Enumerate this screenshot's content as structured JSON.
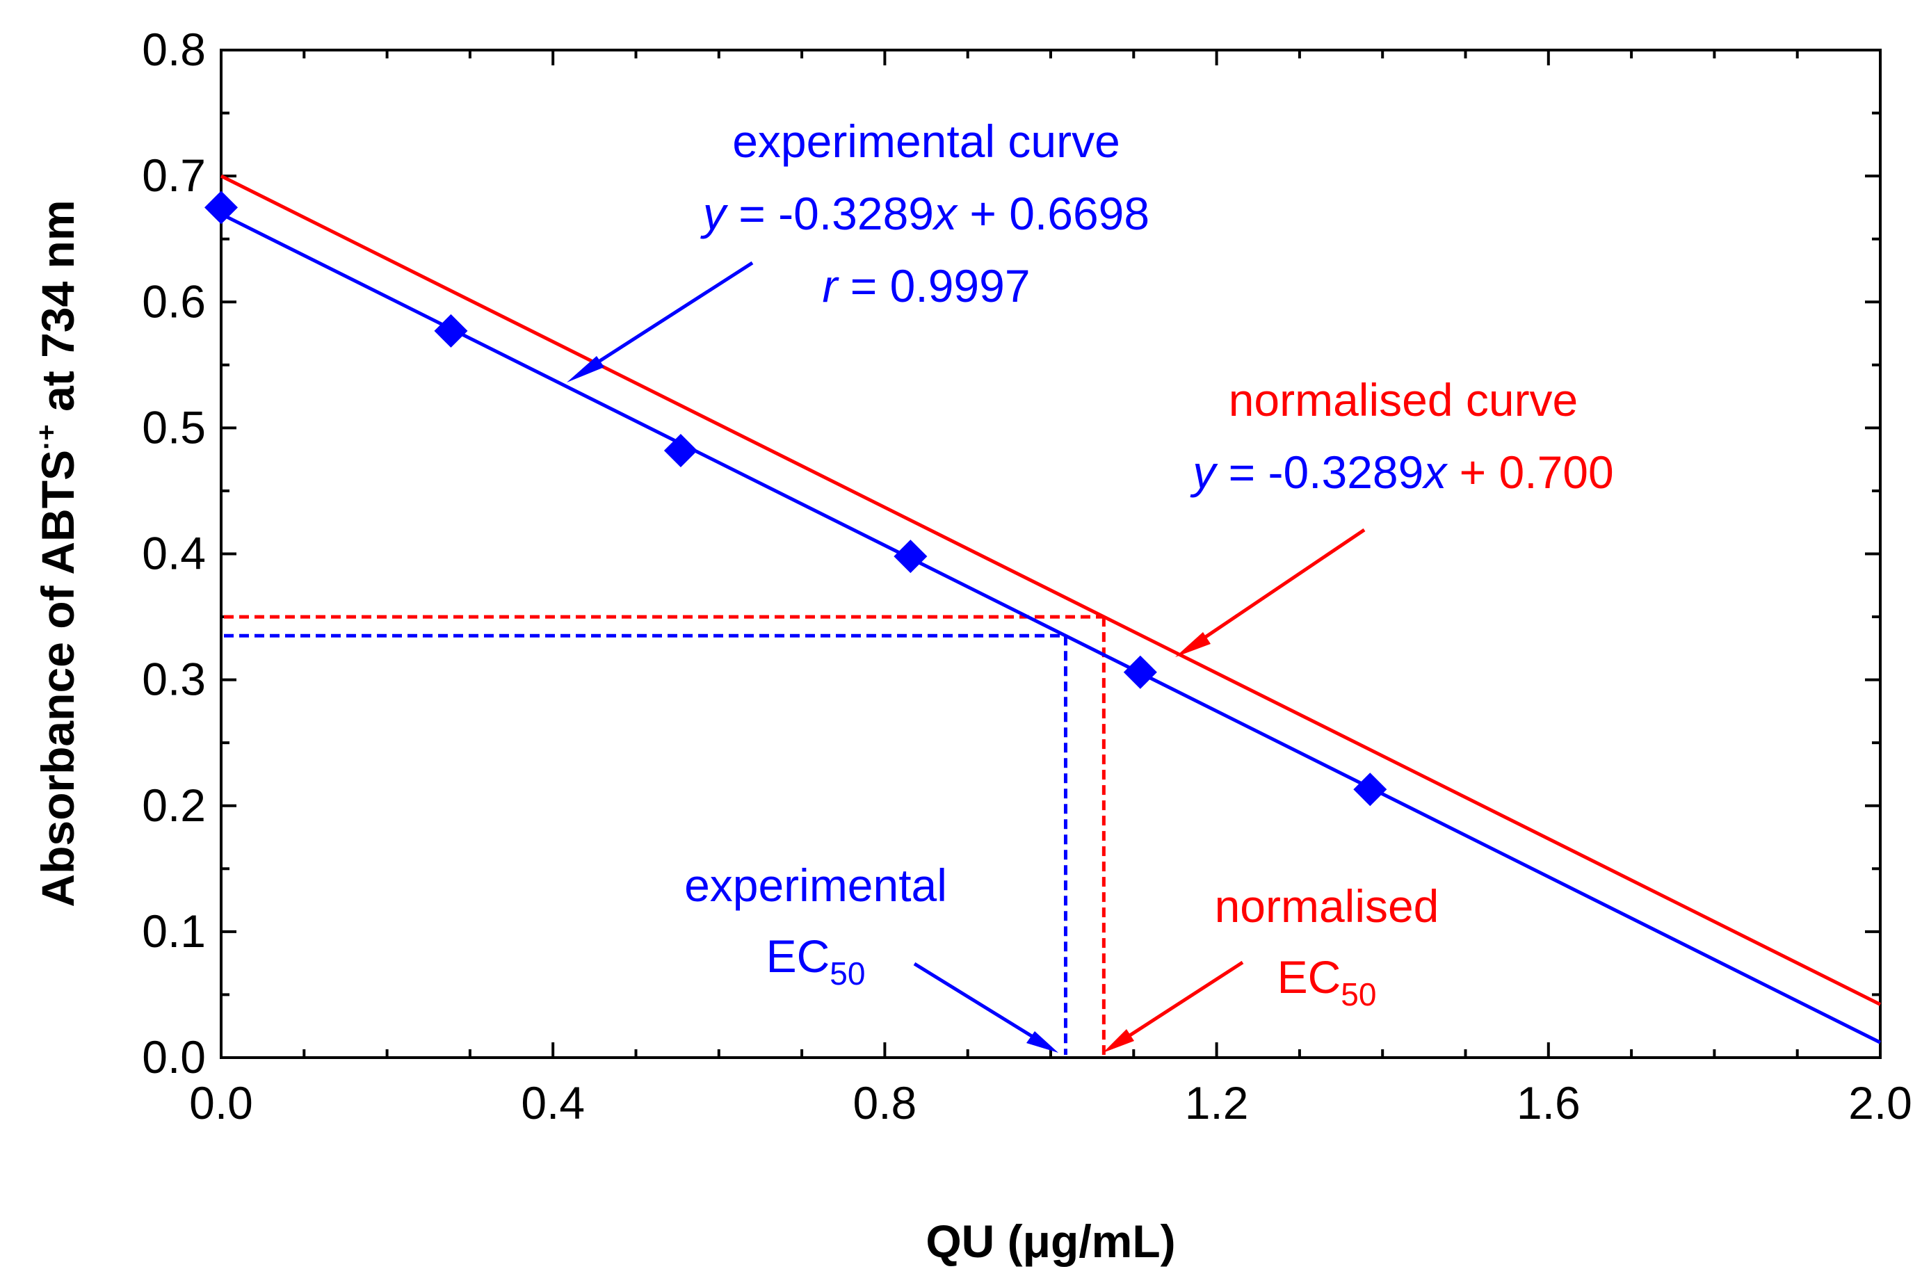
{
  "chart_data": {
    "type": "scatter",
    "title": "",
    "xlabel": "QU (μg/mL)",
    "ylabel_main": "Absorbance of ABTS",
    "ylabel_sup": "·+",
    "ylabel_tail": " at 734 nm",
    "xlim": [
      0.0,
      2.0
    ],
    "ylim": [
      0.0,
      0.8
    ],
    "xticks": [
      "0.0",
      "0.4",
      "0.8",
      "1.2",
      "1.6",
      "2.0"
    ],
    "yticks": [
      "0.0",
      "0.1",
      "0.2",
      "0.3",
      "0.4",
      "0.5",
      "0.6",
      "0.7",
      "0.8"
    ],
    "series": [
      {
        "name": "experimental data",
        "kind": "points",
        "marker": "diamond",
        "color": "#0000ff",
        "x": [
          0.0,
          0.277,
          0.554,
          0.831,
          1.108,
          1.385
        ],
        "y": [
          0.675,
          0.577,
          0.482,
          0.398,
          0.306,
          0.213
        ]
      },
      {
        "name": "experimental curve",
        "kind": "line",
        "color": "#0000ff",
        "slope": -0.3289,
        "intercept": 0.6698
      },
      {
        "name": "normalised curve",
        "kind": "line",
        "color": "#ff0000",
        "slope": -0.3289,
        "intercept": 0.7
      }
    ],
    "reference_lines": [
      {
        "name": "experimental EC50",
        "color": "#0000ff",
        "x": 1.018,
        "y": 0.335
      },
      {
        "name": "normalised EC50",
        "color": "#ff0000",
        "x": 1.064,
        "y": 0.35
      }
    ],
    "annotations": {
      "experimental_curve": {
        "color": "#0000ff",
        "label": "experimental curve",
        "eq_y": "y",
        "eq_mid": " = -0.3289",
        "eq_x": "x",
        "eq_end": " + 0.6698",
        "r_var": "r",
        "r_rest": " = 0.9997"
      },
      "normalised_curve": {
        "color": "#ff0000",
        "eq_color": "#0000ff",
        "label": "normalised curve",
        "eq_y": "y",
        "eq_mid": " = -0.3289",
        "eq_x": "x",
        "eq_end": " + 0.700"
      },
      "experimental_ec50": {
        "color": "#0000ff",
        "label": "experimental",
        "ec": "EC",
        "sub": "50"
      },
      "normalised_ec50": {
        "color": "#ff0000",
        "label": "normalised",
        "ec": "EC",
        "sub": "50"
      }
    }
  }
}
